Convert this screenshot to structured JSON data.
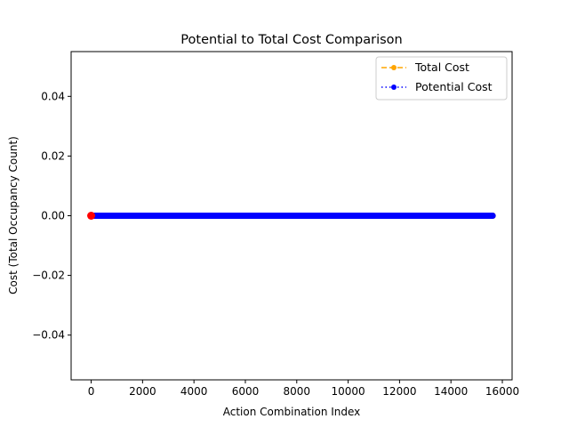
{
  "chart_data": {
    "type": "line",
    "title": "Potential to Total Cost Comparison",
    "xlabel": "Action Combination Index",
    "ylabel": "Cost (Total Occupancy Count)",
    "xlim": [
      -780,
      16380
    ],
    "ylim": [
      -0.055,
      0.055
    ],
    "xticks": [
      0,
      2000,
      4000,
      6000,
      8000,
      10000,
      12000,
      14000,
      16000
    ],
    "xtick_labels": [
      "0",
      "2000",
      "4000",
      "6000",
      "8000",
      "10000",
      "12000",
      "14000",
      "16000"
    ],
    "yticks": [
      -0.04,
      -0.02,
      0.0,
      0.02,
      0.04
    ],
    "ytick_labels": [
      "−0.04",
      "−0.02",
      "0.00",
      "0.02",
      "0.04"
    ],
    "grid": false,
    "legend_position": "top-right",
    "series": [
      {
        "name": "Total Cost",
        "color": "#ffa500",
        "linestyle": "dashed",
        "marker": "circle",
        "x_range": [
          0,
          15624
        ],
        "y_constant": 0.0
      },
      {
        "name": "Potential Cost",
        "color": "#0000ff",
        "linestyle": "dotted",
        "marker": "circle",
        "x_range": [
          0,
          15624
        ],
        "y_constant": 0.0
      }
    ],
    "highlight_points": [
      {
        "x": 0,
        "y": 0.0,
        "color": "#ff0000"
      }
    ]
  }
}
